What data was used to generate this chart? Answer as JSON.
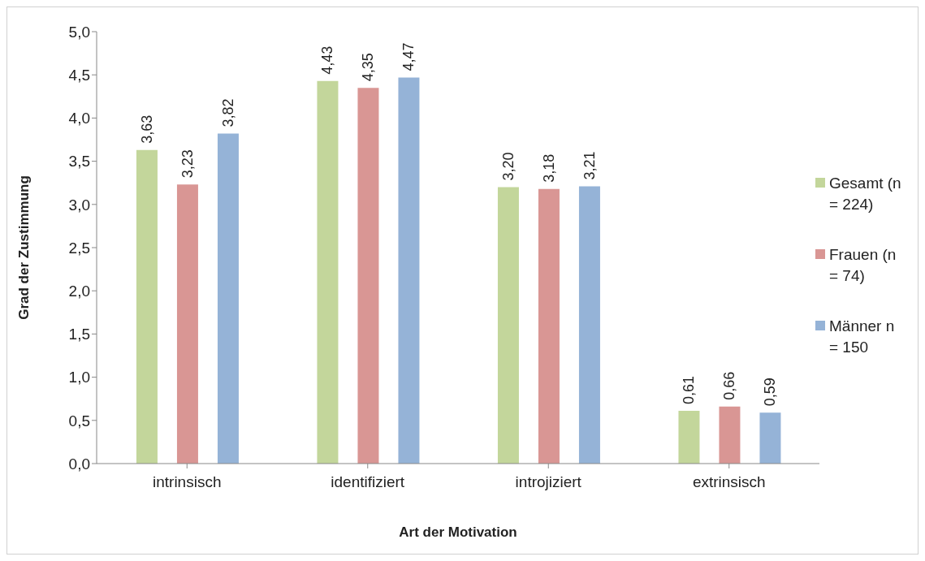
{
  "chart_data": {
    "type": "bar",
    "xlabel": "Art der Motivation",
    "ylabel": "Grad der Zustimmung",
    "categories": [
      "intrinsisch",
      "identifiziert",
      "introjiziert",
      "extrinsisch"
    ],
    "series": [
      {
        "name": "Gesamt (n = 224)",
        "color": "#c3d69b",
        "values": [
          3.63,
          4.43,
          3.2,
          0.61
        ],
        "value_labels": [
          "3,63",
          "4,43",
          "3,20",
          "0,61"
        ]
      },
      {
        "name": "Frauen (n = 74)",
        "color": "#d99694",
        "values": [
          3.23,
          4.35,
          3.18,
          0.66
        ],
        "value_labels": [
          "3,23",
          "4,35",
          "3,18",
          "0,66"
        ]
      },
      {
        "name": "Männer n = 150",
        "color": "#95b3d7",
        "values": [
          3.82,
          4.47,
          3.21,
          0.59
        ],
        "value_labels": [
          "3,82",
          "4,47",
          "3,21",
          "0,59"
        ]
      }
    ],
    "ylim": [
      0,
      5
    ],
    "yticks": [
      {
        "value": 0,
        "label": "0,0"
      },
      {
        "value": 0.5,
        "label": "0,5"
      },
      {
        "value": 1,
        "label": "1,0"
      },
      {
        "value": 1.5,
        "label": "1,5"
      },
      {
        "value": 2,
        "label": "2,0"
      },
      {
        "value": 2.5,
        "label": "2,5"
      },
      {
        "value": 3,
        "label": "3,0"
      },
      {
        "value": 3.5,
        "label": "3,5"
      },
      {
        "value": 4,
        "label": "4,0"
      },
      {
        "value": 4.5,
        "label": "4,5"
      },
      {
        "value": 5,
        "label": "5,0"
      }
    ],
    "grid": false,
    "legend": "right"
  }
}
